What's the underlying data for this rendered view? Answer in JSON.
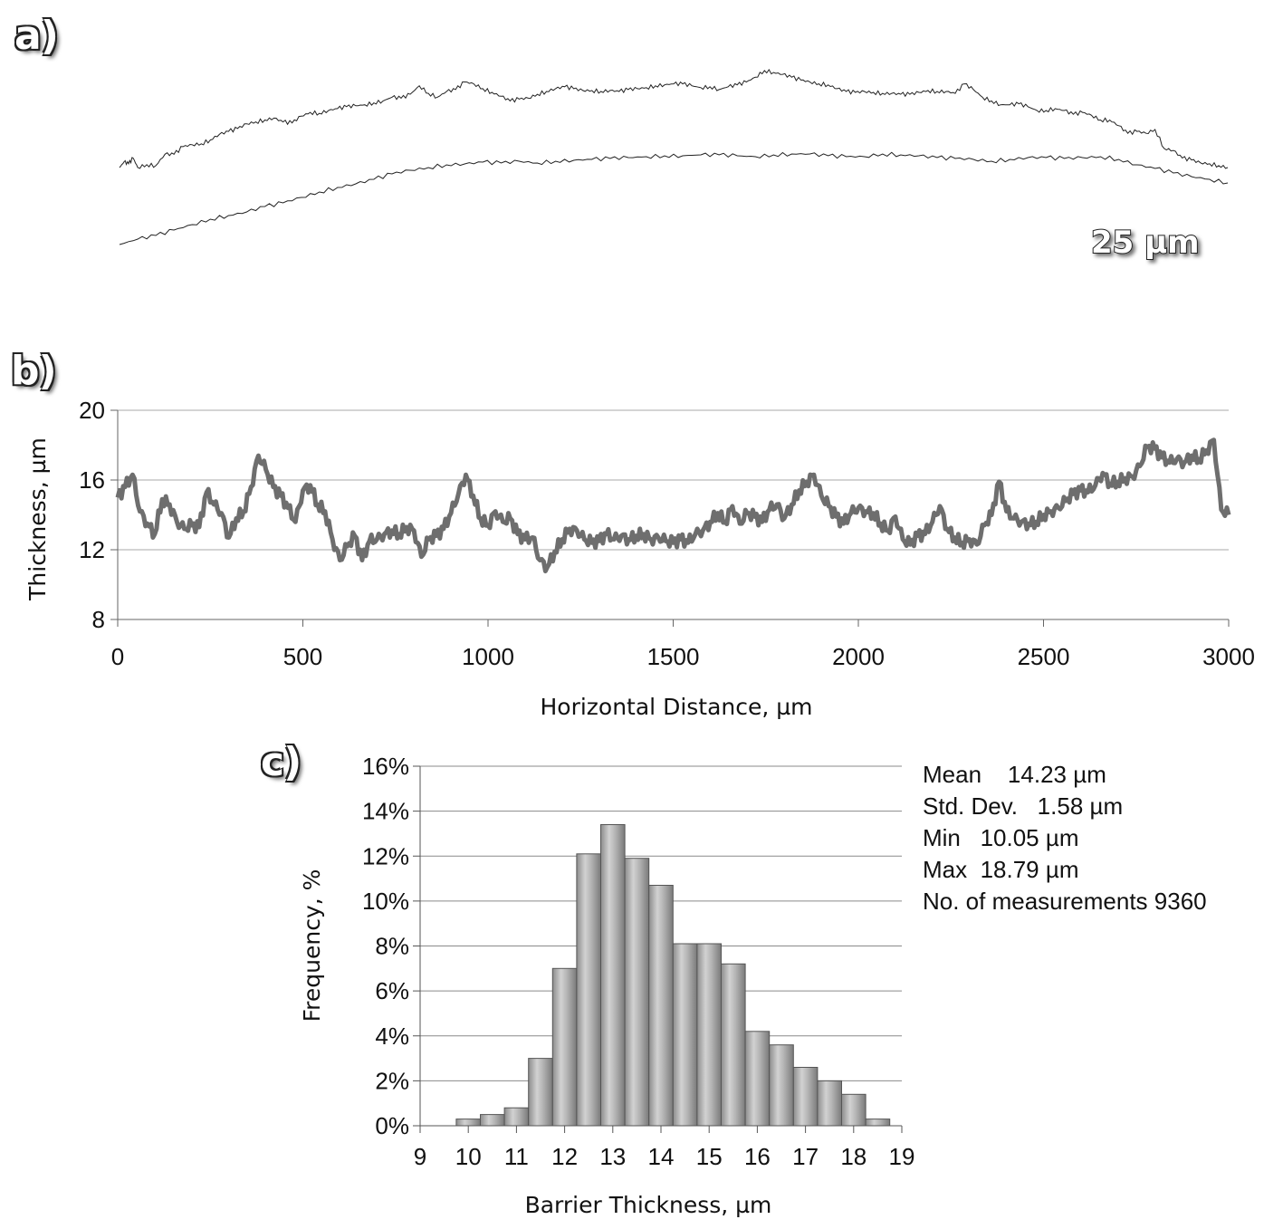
{
  "panels": {
    "a": {
      "label": "a)",
      "scale_bar": "25 µm"
    },
    "b": {
      "label": "b)"
    },
    "c": {
      "label": "c)"
    }
  },
  "stats": {
    "mean": "Mean    14.23 µm",
    "std": "Std. Dev.   1.58 µm",
    "min": "Min   10.05 µm",
    "max": "Max  18.79 µm",
    "n": "No. of measurements 9360"
  },
  "chart_data": [
    {
      "type": "line",
      "panel": "a",
      "description_of_content": "",
      "series": [
        {
          "name": "",
          "x": [
            0,
            5,
            10,
            15,
            20,
            30,
            40,
            50,
            60,
            70,
            80,
            90,
            100,
            110,
            120,
            130,
            140,
            150,
            160,
            170,
            180,
            190,
            200,
            210,
            220,
            230,
            240,
            250,
            260,
            270,
            280,
            290,
            300,
            310,
            320,
            330,
            340,
            350,
            360,
            370,
            380,
            390,
            400,
            410,
            420,
            430,
            440,
            450,
            460,
            470,
            480,
            490,
            500,
            510,
            520,
            530,
            540,
            550,
            560,
            570,
            580,
            590,
            600,
            610,
            620,
            630,
            640,
            650,
            660,
            670,
            680,
            690,
            700,
            710,
            720,
            730,
            740,
            750,
            760,
            770,
            780,
            790,
            800,
            810,
            820,
            830,
            840,
            850,
            860,
            870,
            880,
            890,
            900,
            910,
            920,
            930,
            940,
            950,
            960,
            970,
            980,
            990,
            1000,
            1010,
            1020,
            1030,
            1040,
            1050,
            1060,
            1070,
            1080,
            1090,
            1100,
            1110,
            1120,
            1130,
            1140,
            1150,
            1160,
            1170,
            1180,
            1190,
            1200,
            1210,
            1220
          ],
          "y": [
            0,
            6,
            4,
            10,
            0,
            3,
            2,
            14,
            14,
            22,
            24,
            25,
            29,
            35,
            38,
            41,
            46,
            48,
            50,
            52,
            48,
            47,
            54,
            58,
            57,
            60,
            62,
            64,
            65,
            66,
            68,
            70,
            74,
            73,
            77,
            86,
            78,
            74,
            80,
            82,
            90,
            88,
            83,
            79,
            75,
            70,
            72,
            73,
            77,
            80,
            83,
            85,
            83,
            81,
            81,
            80,
            81,
            80,
            82,
            83,
            84,
            86,
            87,
            88,
            88,
            86,
            84,
            85,
            82,
            85,
            87,
            90,
            95,
            102,
            100,
            98,
            95,
            92,
            90,
            88,
            87,
            83,
            80,
            79,
            80,
            79,
            78,
            78,
            77,
            77,
            79,
            81,
            80,
            80,
            78,
            88,
            82,
            74,
            70,
            66,
            66,
            67,
            64,
            60,
            60,
            62,
            60,
            56,
            58,
            55,
            50,
            50,
            44,
            36,
            38,
            36,
            40,
            20,
            18,
            10,
            8,
            5,
            4,
            2,
            0
          ]
        },
        {
          "name": "",
          "x": [
            0,
            20,
            40,
            60,
            80,
            100,
            120,
            140,
            160,
            180,
            200,
            220,
            240,
            260,
            280,
            300,
            320,
            340,
            360,
            380,
            400,
            420,
            440,
            460,
            480,
            500,
            520,
            540,
            560,
            580,
            600,
            620,
            640,
            660,
            680,
            700,
            720,
            740,
            760,
            780,
            800,
            820,
            840,
            860,
            880,
            900,
            920,
            940,
            960,
            980,
            1000,
            1020,
            1040,
            1060,
            1080,
            1100,
            1120,
            1140,
            1160,
            1180,
            1200,
            1220
          ],
          "y": [
            0,
            6,
            10,
            16,
            22,
            28,
            32,
            36,
            42,
            46,
            52,
            58,
            63,
            67,
            72,
            78,
            82,
            85,
            88,
            89,
            91,
            90,
            92,
            90,
            92,
            93,
            94,
            95,
            96,
            97,
            98,
            98,
            99,
            99,
            98,
            97,
            99,
            100,
            100,
            98,
            97,
            97,
            100,
            99,
            98,
            96,
            95,
            94,
            92,
            94,
            96,
            96,
            95,
            96,
            97,
            94,
            88,
            84,
            79,
            75,
            72,
            68
          ]
        }
      ]
    },
    {
      "type": "line",
      "panel": "b",
      "xlabel": "Horizontal Distance, µm",
      "ylabel": "Thickness, µm",
      "xlim": [
        0,
        3000
      ],
      "ylim": [
        8,
        20
      ],
      "xticks": [
        0,
        500,
        1000,
        1500,
        2000,
        2500,
        3000
      ],
      "yticks": [
        8,
        12,
        16,
        20
      ],
      "grid": true,
      "series": [
        {
          "name": "",
          "x": [
            0,
            20,
            40,
            60,
            80,
            100,
            120,
            140,
            160,
            180,
            200,
            220,
            240,
            260,
            280,
            300,
            320,
            340,
            360,
            380,
            400,
            420,
            440,
            460,
            480,
            500,
            520,
            540,
            560,
            580,
            600,
            620,
            640,
            660,
            680,
            700,
            720,
            740,
            760,
            780,
            800,
            820,
            840,
            860,
            880,
            900,
            920,
            940,
            960,
            980,
            1000,
            1020,
            1040,
            1060,
            1080,
            1100,
            1120,
            1140,
            1160,
            1180,
            1200,
            1220,
            1240,
            1260,
            1280,
            1300,
            1320,
            1340,
            1360,
            1380,
            1400,
            1420,
            1440,
            1460,
            1480,
            1500,
            1520,
            1540,
            1560,
            1580,
            1600,
            1620,
            1640,
            1660,
            1680,
            1700,
            1720,
            1740,
            1760,
            1780,
            1800,
            1820,
            1840,
            1860,
            1880,
            1900,
            1920,
            1940,
            1960,
            1980,
            2000,
            2020,
            2040,
            2060,
            2080,
            2100,
            2120,
            2140,
            2160,
            2180,
            2200,
            2220,
            2240,
            2260,
            2280,
            2300,
            2320,
            2340,
            2360,
            2380,
            2400,
            2420,
            2440,
            2460,
            2480,
            2500,
            2520,
            2540,
            2560,
            2580,
            2600,
            2620,
            2640,
            2660,
            2680,
            2700,
            2720,
            2740,
            2760,
            2780,
            2800,
            2820,
            2840,
            2860,
            2880,
            2900,
            2920,
            2940,
            2960,
            2980,
            3000
          ],
          "y": [
            15.0,
            15.6,
            16.3,
            14.2,
            13.5,
            12.9,
            14.9,
            14.6,
            13.6,
            13.2,
            13.4,
            13.3,
            15.3,
            14.6,
            14.1,
            12.7,
            13.8,
            14.2,
            15.6,
            17.4,
            16.6,
            15.6,
            15.1,
            14.4,
            13.6,
            15.4,
            15.7,
            14.6,
            14.2,
            12.6,
            11.4,
            12.2,
            12.8,
            11.4,
            12.5,
            12.6,
            12.9,
            13.1,
            12.9,
            13.3,
            13.1,
            11.6,
            12.6,
            12.8,
            13.2,
            14.1,
            15.2,
            16.3,
            15.1,
            13.8,
            13.4,
            14.2,
            13.6,
            13.8,
            12.9,
            12.6,
            12.7,
            11.4,
            11.0,
            11.9,
            12.6,
            13.2,
            13.1,
            12.6,
            12.4,
            12.5,
            12.9,
            12.6,
            12.8,
            12.6,
            12.8,
            12.9,
            12.6,
            12.7,
            12.5,
            12.4,
            12.6,
            12.4,
            12.9,
            13.1,
            13.6,
            14.1,
            13.6,
            14.5,
            13.5,
            14.1,
            13.9,
            13.6,
            14.3,
            14.6,
            13.8,
            14.6,
            15.4,
            15.9,
            16.3,
            15.1,
            14.5,
            13.9,
            13.5,
            14.1,
            14.4,
            14.2,
            14.1,
            13.5,
            13.1,
            13.9,
            12.6,
            12.3,
            12.8,
            12.9,
            13.6,
            14.5,
            13.2,
            12.7,
            12.4,
            12.6,
            12.3,
            13.4,
            14.0,
            15.9,
            14.2,
            13.8,
            13.6,
            13.5,
            13.6,
            14.0,
            14.2,
            14.4,
            14.8,
            15.2,
            15.4,
            15.3,
            15.7,
            16.4,
            15.8,
            15.9,
            16.1,
            16.2,
            16.8,
            17.9,
            17.8,
            17.3,
            17.0,
            17.2,
            17.0,
            17.4,
            17.2,
            17.7,
            18.3,
            14.3,
            14.0
          ]
        }
      ]
    },
    {
      "type": "bar",
      "panel": "c",
      "xlabel": "Barrier Thickness, µm",
      "ylabel": "Frequency, %",
      "xlim": [
        9,
        19
      ],
      "ylim": [
        0,
        16
      ],
      "xticks": [
        9,
        10,
        11,
        12,
        13,
        14,
        15,
        16,
        17,
        18,
        19
      ],
      "yticks": [
        "0%",
        "2%",
        "4%",
        "6%",
        "8%",
        "10%",
        "12%",
        "14%",
        "16%"
      ],
      "grid": true,
      "bin_width": 0.5,
      "bin_centers": [
        10.0,
        10.5,
        11.0,
        11.5,
        12.0,
        12.5,
        13.0,
        13.5,
        14.0,
        14.5,
        15.0,
        15.5,
        16.0,
        16.5,
        17.0,
        17.5,
        18.0,
        18.5
      ],
      "values": [
        0.3,
        0.5,
        0.8,
        3.0,
        7.0,
        12.1,
        13.4,
        11.9,
        10.7,
        8.1,
        8.1,
        7.2,
        4.2,
        3.6,
        2.6,
        2.0,
        1.4,
        0.3
      ]
    }
  ]
}
